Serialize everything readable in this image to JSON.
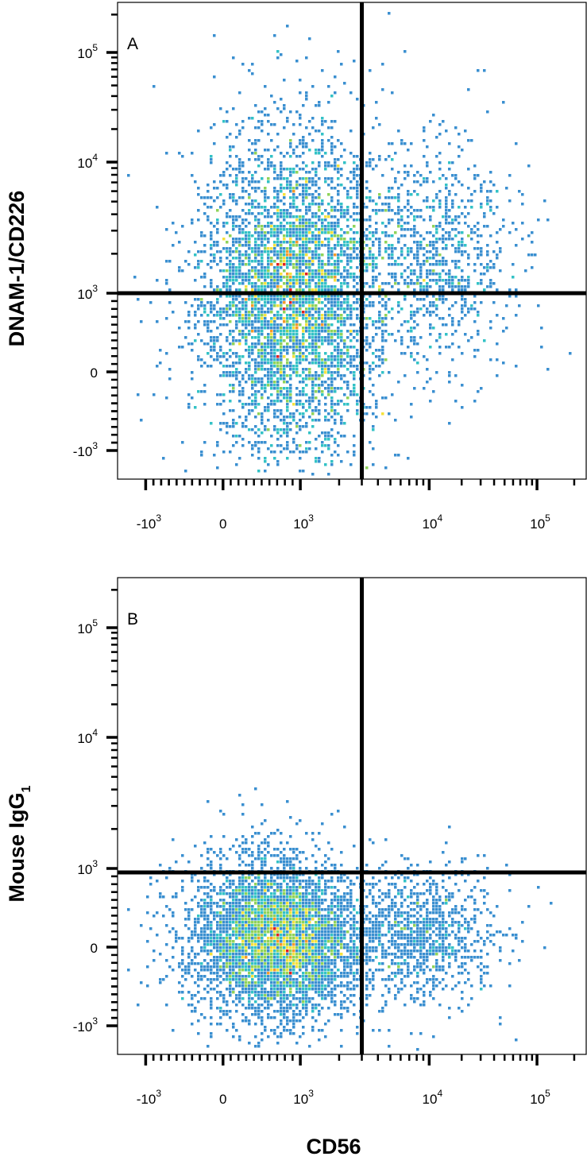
{
  "figure": {
    "x_axis_title": "CD56"
  },
  "chart_data": [
    {
      "type": "scatter",
      "subtype": "flow-cytometry-density",
      "panel_label": "A",
      "ylabel_main": "DNAM-1/CD226",
      "ylabel_sub": "",
      "x_scale": "biexponential",
      "y_scale": "biexponential",
      "xlim": [
        -1500,
        250000
      ],
      "ylim": [
        -1500,
        250000
      ],
      "x_ticks": [
        {
          "value": -1000,
          "base": "-10",
          "exp": "3"
        },
        {
          "value": 0,
          "base": "0",
          "exp": ""
        },
        {
          "value": 1000,
          "base": "10",
          "exp": "3"
        },
        {
          "value": 10000,
          "base": "10",
          "exp": "4"
        },
        {
          "value": 100000,
          "base": "10",
          "exp": "5"
        }
      ],
      "y_ticks": [
        {
          "value": -1000,
          "base": "-10",
          "exp": "3"
        },
        {
          "value": 0,
          "base": "0",
          "exp": ""
        },
        {
          "value": 1000,
          "base": "10",
          "exp": "3"
        },
        {
          "value": 10000,
          "base": "10",
          "exp": "4"
        },
        {
          "value": 100000,
          "base": "10",
          "exp": "5"
        }
      ],
      "quadrant_gate": {
        "x": 3000,
        "y": 1000
      },
      "populations": [
        {
          "name": "",
          "x_center": 900,
          "y_center": 1000,
          "density": "high",
          "seed": 11,
          "count": 4600,
          "sx": 0.1,
          "sy": 0.17
        },
        {
          "name": "",
          "x_center": 11000,
          "y_center": 1800,
          "density": "low",
          "seed": 23,
          "count": 900,
          "sx": 0.085,
          "sy": 0.12
        }
      ],
      "grid": false,
      "legend": "none",
      "color_scale": [
        "#2a3da8",
        "#3a8fd0",
        "#33c2c6",
        "#8fd35a",
        "#f5e23c",
        "#f59a2a",
        "#e02020"
      ]
    },
    {
      "type": "scatter",
      "subtype": "flow-cytometry-density",
      "panel_label": "B",
      "ylabel_main": "Mouse IgG",
      "ylabel_sub": "1",
      "x_scale": "biexponential",
      "y_scale": "biexponential",
      "xlim": [
        -1500,
        250000
      ],
      "ylim": [
        -1500,
        250000
      ],
      "x_ticks": [
        {
          "value": -1000,
          "base": "-10",
          "exp": "3"
        },
        {
          "value": 0,
          "base": "0",
          "exp": ""
        },
        {
          "value": 1000,
          "base": "10",
          "exp": "3"
        },
        {
          "value": 10000,
          "base": "10",
          "exp": "4"
        },
        {
          "value": 100000,
          "base": "10",
          "exp": "5"
        }
      ],
      "y_ticks": [
        {
          "value": -1000,
          "base": "-10",
          "exp": "3"
        },
        {
          "value": 0,
          "base": "0",
          "exp": ""
        },
        {
          "value": 1000,
          "base": "10",
          "exp": "3"
        },
        {
          "value": 10000,
          "base": "10",
          "exp": "4"
        },
        {
          "value": 100000,
          "base": "10",
          "exp": "5"
        }
      ],
      "quadrant_gate": {
        "x": 3000,
        "y": 950
      },
      "populations": [
        {
          "name": "",
          "x_center": 700,
          "y_center": 100,
          "density": "high",
          "seed": 37,
          "count": 4800,
          "sx": 0.095,
          "sy": 0.085
        },
        {
          "name": "",
          "x_center": 9000,
          "y_center": 150,
          "density": "low",
          "seed": 53,
          "count": 1000,
          "sx": 0.08,
          "sy": 0.07
        }
      ],
      "grid": false,
      "legend": "none",
      "color_scale": [
        "#2a3da8",
        "#3a8fd0",
        "#33c2c6",
        "#8fd35a",
        "#f5e23c",
        "#f59a2a",
        "#e02020"
      ]
    }
  ]
}
